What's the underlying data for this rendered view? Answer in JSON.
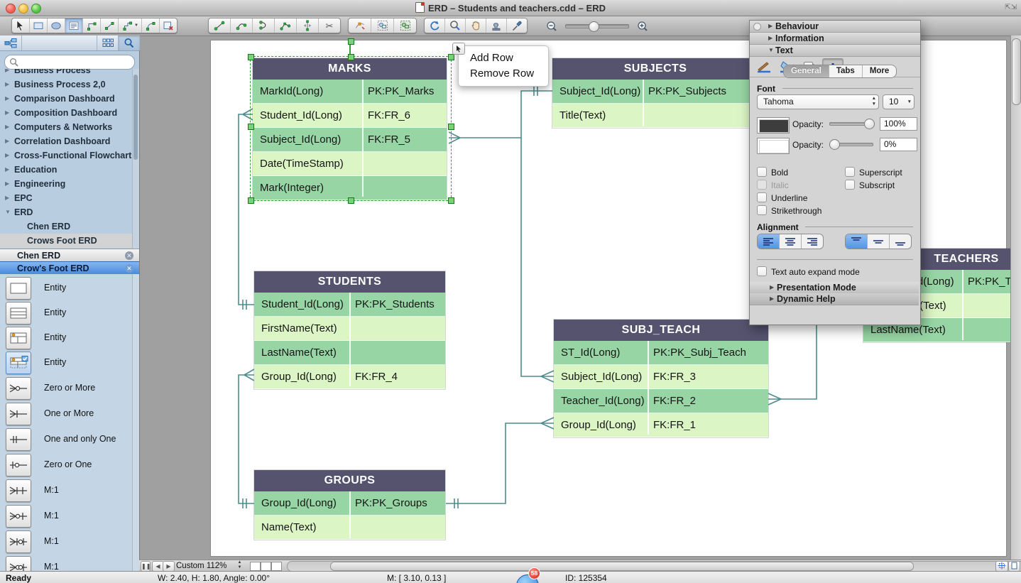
{
  "window": {
    "title": "ERD – Students and teachers.cdd – ERD"
  },
  "sidebar": {
    "search": {
      "placeholder": "",
      "icon": "magnifier-icon"
    },
    "header_icons": [
      "tree-view-icon",
      "grid-view-icon",
      "search-icon"
    ],
    "libraries": [
      {
        "label": "Business Process"
      },
      {
        "label": "Business Process 2,0"
      },
      {
        "label": "Comparison Dashboard"
      },
      {
        "label": "Composition Dashboard"
      },
      {
        "label": "Computers & Networks"
      },
      {
        "label": "Correlation Dashboard"
      },
      {
        "label": "Cross-Functional Flowcharts"
      },
      {
        "label": "Education"
      },
      {
        "label": "Engineering"
      },
      {
        "label": "EPC"
      },
      {
        "label": "ERD",
        "expanded": true
      },
      {
        "label": "Chen ERD",
        "child": true
      },
      {
        "label": "Crows Foot ERD",
        "child": true,
        "highlighted": true
      }
    ],
    "tabs": [
      {
        "label": "Chen ERD",
        "selected": false,
        "close_icon": "close-circle-icon"
      },
      {
        "label": "Crow's Foot ERD",
        "selected": true,
        "close_icon": "close-circle-icon"
      }
    ],
    "shapes": [
      {
        "label": "Entity",
        "icon": "entity-plain-icon"
      },
      {
        "label": "Entity",
        "icon": "entity-rows-icon"
      },
      {
        "label": "Entity",
        "icon": "entity-key-icon"
      },
      {
        "label": "Entity",
        "icon": "entity-key-selected-icon",
        "selected": true
      },
      {
        "label": "Zero or More",
        "icon": "zero-or-more-icon"
      },
      {
        "label": "One or More",
        "icon": "one-or-more-icon"
      },
      {
        "label": "One and only One",
        "icon": "one-and-only-one-icon"
      },
      {
        "label": "Zero or One",
        "icon": "zero-or-one-icon"
      },
      {
        "label": "M:1",
        "icon": "m1-a-icon"
      },
      {
        "label": "M:1",
        "icon": "m1-b-icon"
      },
      {
        "label": "M:1",
        "icon": "m1-c-icon"
      },
      {
        "label": "M:1",
        "icon": "m1-d-icon"
      }
    ]
  },
  "canvas": {
    "context_menu": {
      "items": [
        "Add Row",
        "Remove Row"
      ]
    },
    "tables": [
      {
        "name": "MARKS",
        "selected": true,
        "rows": [
          [
            "MarkId(Long)",
            "PK:PK_Marks"
          ],
          [
            "Student_Id(Long)",
            "FK:FR_6"
          ],
          [
            "Subject_Id(Long)",
            "FK:FR_5"
          ],
          [
            "Date(TimeStamp)",
            ""
          ],
          [
            "Mark(Integer)",
            ""
          ]
        ]
      },
      {
        "name": "SUBJECTS",
        "rows": [
          [
            "Subject_Id(Long)",
            "PK:PK_Subjects"
          ],
          [
            "Title(Text)",
            ""
          ]
        ]
      },
      {
        "name": "STUDENTS",
        "rows": [
          [
            "Student_Id(Long)",
            "PK:PK_Students"
          ],
          [
            "FirstName(Text)",
            ""
          ],
          [
            "LastName(Text)",
            ""
          ],
          [
            "Group_Id(Long)",
            "FK:FR_4"
          ]
        ]
      },
      {
        "name": "SUBJ_TEACH",
        "rows": [
          [
            "ST_Id(Long)",
            "PK:PK_Subj_Teach"
          ],
          [
            "Subject_Id(Long)",
            "FK:FR_3"
          ],
          [
            "Teacher_Id(Long)",
            "FK:FR_2"
          ],
          [
            "Group_Id(Long)",
            "FK:FR_1"
          ]
        ]
      },
      {
        "name": "GROUPS",
        "rows": [
          [
            "Group_Id(Long)",
            "PK:PK_Groups"
          ],
          [
            "Name(Text)",
            ""
          ]
        ]
      },
      {
        "name": "TEACHERS",
        "rows": [
          [
            "Teacher_Id(Long)",
            "PK:PK_Teachers"
          ],
          [
            "FirstName(Text)",
            ""
          ],
          [
            "LastName(Text)",
            ""
          ]
        ]
      }
    ]
  },
  "inspector": {
    "sections": {
      "behaviour": "Behaviour",
      "information": "Information",
      "text": "Text"
    },
    "icon_names": [
      "line-style-icon",
      "fill-bucket-icon",
      "shadow-icon",
      "text-format-icon"
    ],
    "text_icon": "A",
    "tabs": [
      {
        "label": "General",
        "selected": true
      },
      {
        "label": "Tabs",
        "selected": false
      },
      {
        "label": "More",
        "selected": false
      }
    ],
    "font": {
      "label": "Font",
      "family": "Tahoma",
      "size": "10",
      "opacity_label": "Opacity:",
      "text_opacity": "100%",
      "bg_opacity": "0%"
    },
    "style": {
      "bold": "Bold",
      "italic": "Italic",
      "underline": "Underline",
      "strikethrough": "Strikethrough",
      "superscript": "Superscript",
      "subscript": "Subscript"
    },
    "alignment_label": "Alignment",
    "auto_expand_label": "Text auto expand mode",
    "presentation_label": "Presentation Mode",
    "dynamic_help_label": "Dynamic Help"
  },
  "bottombar": {
    "zoom": "Custom 112%"
  },
  "statusbar": {
    "ready": "Ready",
    "dimensions": "W: 2.40,  H: 1.80,  Angle: 0.00°",
    "mouse": "M: [ 3.10, 0.13 ]",
    "object_id": "ID: 125354",
    "dock_badge": "58"
  },
  "colors": {
    "table_header": "#56536F",
    "row_green": "#97D5A4",
    "row_light": "#DCF5C5",
    "connector": "#4E8C8C",
    "selection_green": "#2EA22E",
    "selected_tab_blue": "#4488DD"
  }
}
